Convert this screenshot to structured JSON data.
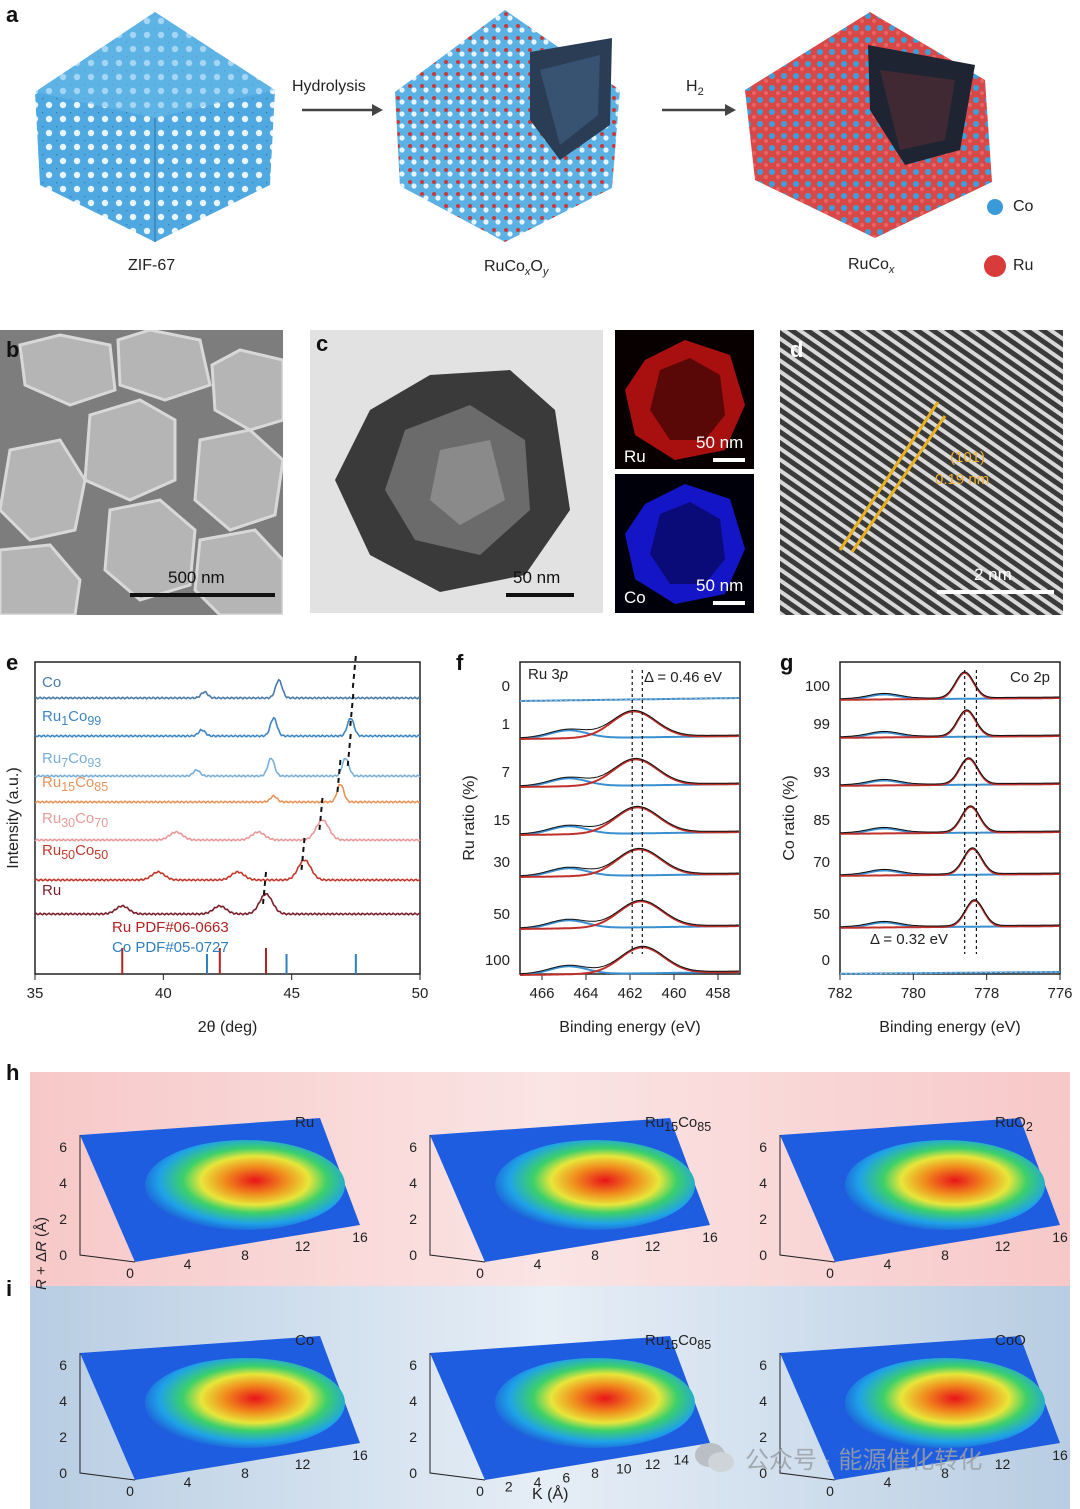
{
  "panels": {
    "a": "a",
    "b": "b",
    "c": "c",
    "d": "d",
    "e": "e",
    "f": "f",
    "g": "g",
    "h": "h",
    "i": "i"
  },
  "panel_a": {
    "structures": [
      {
        "name": "ZIF-67",
        "label_html": "ZIF-67"
      },
      {
        "name": "RuCoxOy",
        "label_html": "RuCo<sub><i>x</i></sub>O<sub><i>y</i></sub>"
      },
      {
        "name": "RuCox",
        "label_html": "RuCo<sub><i>x</i></sub>"
      }
    ],
    "arrow1": "Hydrolysis",
    "arrow2_html": "H<sub>2</sub>",
    "legend": [
      {
        "label": "Co",
        "color": "#3a9ad9"
      },
      {
        "label": "Ru",
        "color": "#d93a3a"
      }
    ]
  },
  "panel_b": {
    "scale": "500 nm"
  },
  "panel_c": {
    "scale": "50 nm",
    "map_ru_label": "Ru",
    "map_ru_scale": "50 nm",
    "map_co_label": "Co",
    "map_co_scale": "50 nm"
  },
  "panel_d": {
    "plane": "(101)",
    "spacing": "0.19 nm",
    "scale": "2 nm"
  },
  "chart_data": [
    {
      "panel": "e",
      "type": "line",
      "xlabel": "2θ (deg)",
      "ylabel": "Intensity (a.u.)",
      "xlim": [
        35,
        50
      ],
      "xticks": [
        35,
        40,
        45,
        50
      ],
      "series": [
        {
          "name": "Co",
          "label_html": "Co",
          "color": "#4a7aa8",
          "peaks": [
            41.6,
            44.5
          ],
          "shift_marker": 47.5
        },
        {
          "name": "Ru1Co99",
          "label_html": "Ru<sub>1</sub>Co<sub>99</sub>",
          "color": "#3e86c2",
          "peaks": [
            41.5,
            44.3,
            47.3
          ],
          "shift_marker": 47.4
        },
        {
          "name": "Ru7Co93",
          "label_html": "Ru<sub>7</sub>Co<sub>93</sub>",
          "color": "#7ab0d8",
          "peaks": [
            41.3,
            44.2,
            47.1
          ],
          "shift_marker": 47.3
        },
        {
          "name": "Ru15Co85",
          "label_html": "Ru<sub>15</sub>Co<sub>85</sub>",
          "color": "#e8935a",
          "peaks": [
            44.3,
            46.9
          ],
          "shift_marker": 46.9
        },
        {
          "name": "Ru30Co70",
          "label_html": "Ru<sub>30</sub>Co<sub>70</sub>",
          "color": "#e89a9a",
          "peaks": [
            40.5,
            43.7,
            46.2
          ],
          "shift_marker": 46.2
        },
        {
          "name": "Ru50Co50",
          "label_html": "Ru<sub>50</sub>Co<sub>50</sub>",
          "color": "#c0392b",
          "peaks": [
            39.8,
            42.9,
            45.5
          ],
          "shift_marker": 45.5
        },
        {
          "name": "Ru",
          "label_html": "Ru",
          "color": "#7a1f2b",
          "peaks": [
            38.4,
            42.2,
            44.0
          ],
          "shift_marker": 44.0
        }
      ],
      "references": [
        {
          "label": "Ru PDF#06-0663",
          "color": "#b22222",
          "positions": [
            38.4,
            42.2,
            44.0
          ]
        },
        {
          "label": "Co PDF#05-0727",
          "color": "#2e7fbf",
          "positions": [
            41.7,
            44.8,
            47.5
          ]
        }
      ]
    },
    {
      "panel": "f",
      "type": "line",
      "title_html": "Ru 3<i>p</i>",
      "annotation": "Δ = 0.46 eV",
      "xlabel": "Binding energy (eV)",
      "ylabel": "Ru ratio (%)",
      "xlim": [
        467,
        457
      ],
      "xticks": [
        466,
        464,
        462,
        460,
        458
      ],
      "ratios": [
        "0",
        "1",
        "7",
        "15",
        "30",
        "50",
        "100"
      ],
      "peak_positions": [
        461.9,
        461.44
      ]
    },
    {
      "panel": "g",
      "type": "line",
      "title": "Co 2p",
      "annotation": "Δ = 0.32 eV",
      "xlabel": "Binding energy (eV)",
      "ylabel": "Co ratio (%)",
      "xlim": [
        782,
        776
      ],
      "xticks": [
        782,
        780,
        778,
        776
      ],
      "ratios": [
        "100",
        "99",
        "93",
        "85",
        "70",
        "50",
        "0"
      ],
      "peak_positions": [
        778.6,
        778.28
      ]
    },
    {
      "panel": "h",
      "type": "heatmap",
      "plots": [
        {
          "title_html": "Ru"
        },
        {
          "title_html": "Ru<sub>15</sub>Co<sub>85</sub>"
        },
        {
          "title_html": "RuO<sub>2</sub>"
        }
      ],
      "yticks": [
        "0",
        "2",
        "4",
        "6"
      ],
      "xticks": [
        "0",
        "4",
        "8",
        "12",
        "16"
      ]
    },
    {
      "panel": "i",
      "type": "heatmap",
      "plots": [
        {
          "title_html": "Co"
        },
        {
          "title_html": "Ru<sub>15</sub>Co<sub>85</sub>"
        },
        {
          "title_html": "CoO"
        }
      ],
      "yticks": [
        "0",
        "2",
        "4",
        "6"
      ],
      "xticks": [
        "0",
        "4",
        "8",
        "12",
        "16"
      ],
      "xticks_middle": [
        "0",
        "2",
        "4",
        "6",
        "8",
        "10",
        "12",
        "14",
        "16"
      ],
      "ylabel_html": "<i>R</i> + Δ<i>R</i> (Å)",
      "xlabel": "K (Å)"
    }
  ],
  "watermark": "公众号 · 能源催化转化"
}
